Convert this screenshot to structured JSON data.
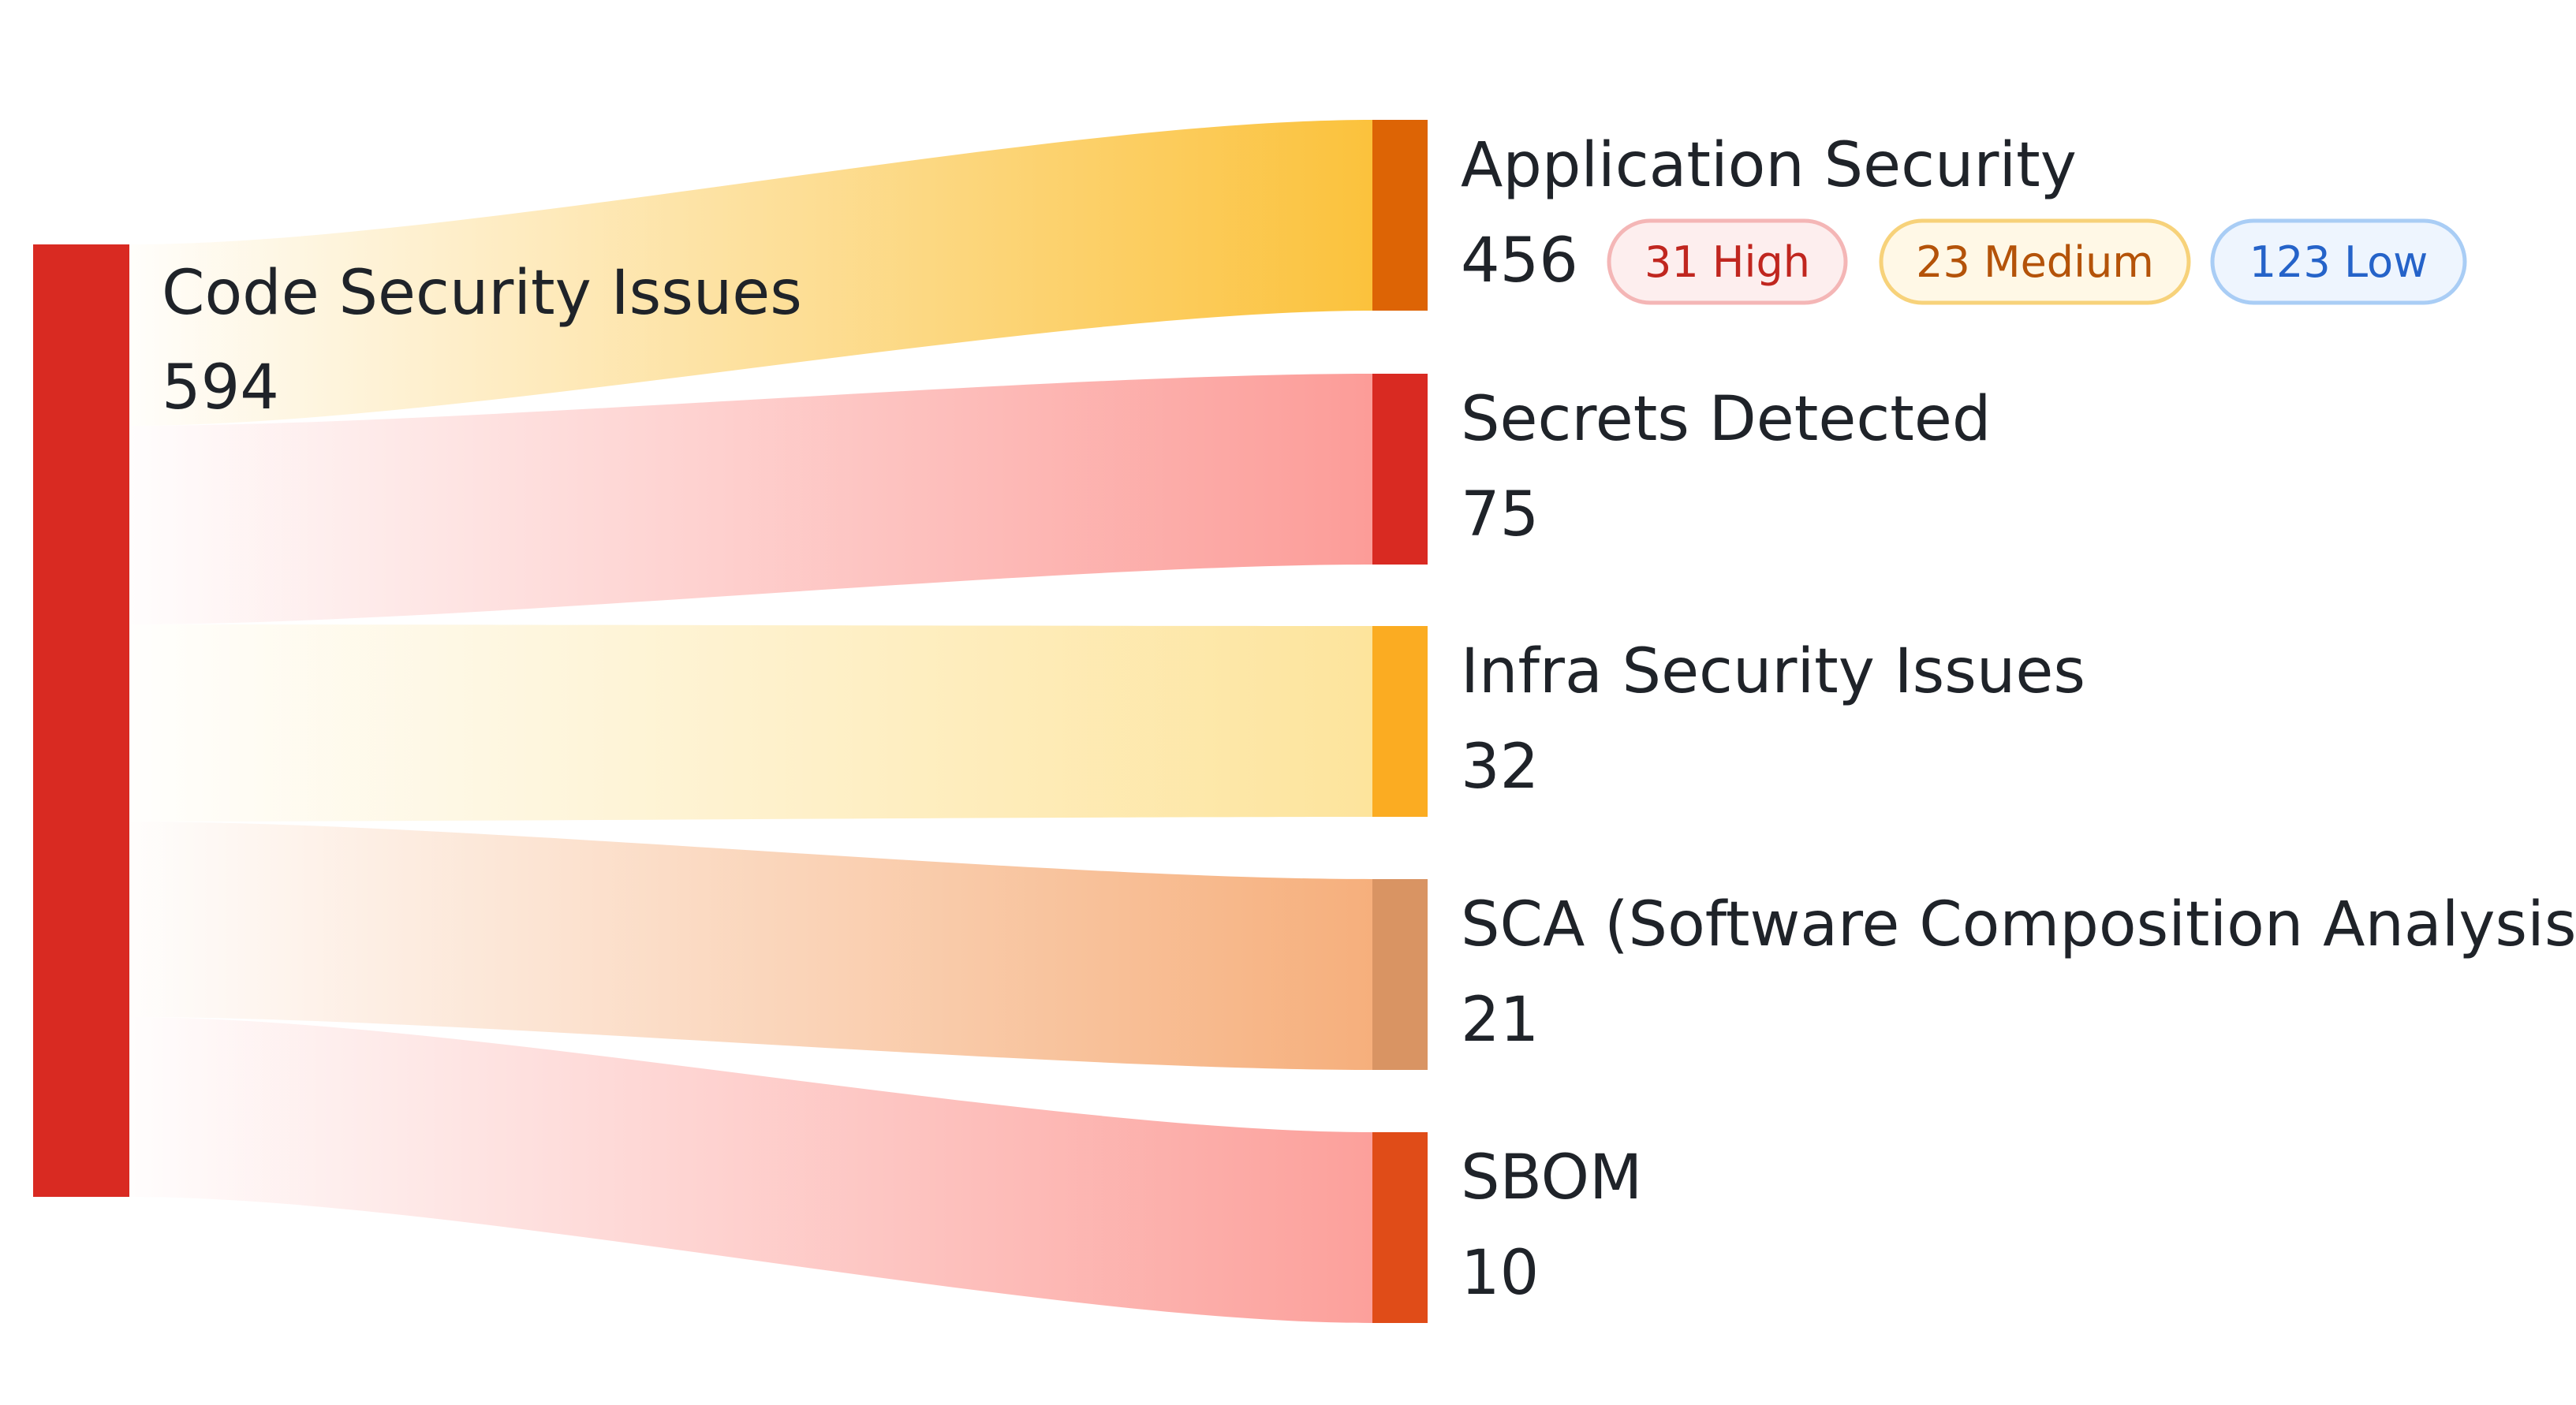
{
  "chart_data": {
    "type": "sankey",
    "source": {
      "name": "Code Security Issues",
      "value": 594,
      "color": "#d92a22"
    },
    "targets": [
      {
        "name": "Application Security",
        "value": 456,
        "node_color": "#dd6405",
        "flow_color": "#fbc23c",
        "badges": [
          {
            "label": "31 High",
            "text": "#c0261f",
            "fill": "#fdeeee",
            "border": "#f4b6b6"
          },
          {
            "label": "23 Medium",
            "text": "#b45309",
            "fill": "#fff8e6",
            "border": "#f7d27a"
          },
          {
            "label": "123 Low",
            "text": "#2563c9",
            "fill": "#eef5fe",
            "border": "#a9cdf5"
          }
        ]
      },
      {
        "name": "Secrets Detected",
        "value": 75,
        "node_color": "#d92a22",
        "flow_color": "#fc9c98",
        "badges": []
      },
      {
        "name": "Infra Security Issues",
        "value": 32,
        "node_color": "#fbac22",
        "flow_color": "#fde49c",
        "badges": []
      },
      {
        "name": "SCA (Software Composition Analysis)",
        "value": 21,
        "node_color": "#d99463",
        "flow_color": "#f6af7c",
        "badges": []
      },
      {
        "name": "SBOM",
        "value": 10,
        "node_color": "#e04c18",
        "flow_color": "#fca09b",
        "badges": []
      }
    ]
  }
}
